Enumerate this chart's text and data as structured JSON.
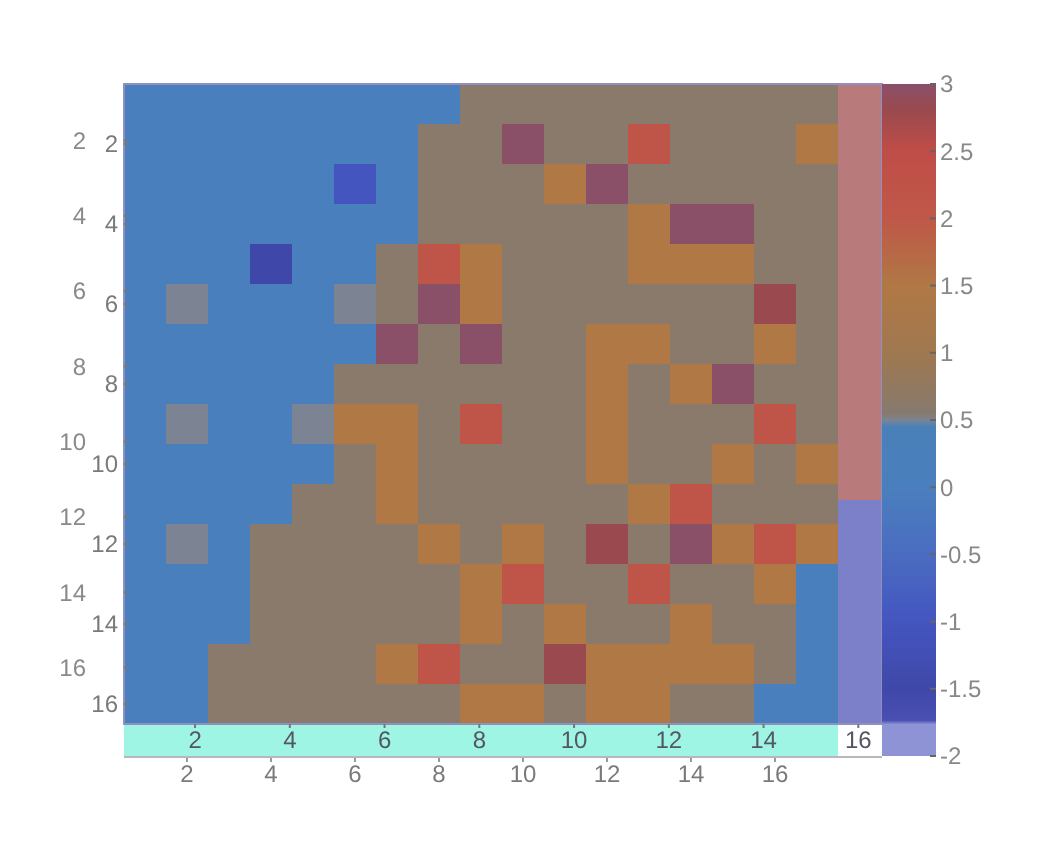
{
  "chart_data": {
    "type": "heatmap",
    "categories": [
      null,
      "2",
      null,
      "4",
      null,
      "6",
      null,
      "8",
      null,
      "10",
      null,
      "12",
      null,
      "14",
      null,
      "16",
      null
    ],
    "y_categories": [
      null,
      "2",
      null,
      "4",
      null,
      "6",
      null,
      "8",
      null,
      "10",
      null,
      "12",
      null,
      "14",
      null,
      "16"
    ],
    "cells": [
      [
        0,
        0,
        0,
        0,
        0,
        0,
        0,
        0,
        0.6,
        0.6,
        0.6,
        0.6,
        0.6,
        0.6,
        0.6,
        0.6,
        0.6
      ],
      [
        0,
        0,
        0,
        0,
        0,
        0,
        0,
        0.6,
        0.6,
        3,
        0.6,
        0.6,
        2.2,
        0.6,
        0.6,
        0.6,
        1.5
      ],
      [
        0,
        0,
        0,
        0,
        0,
        -1,
        0,
        0.6,
        0.6,
        0.6,
        1.5,
        3,
        0.6,
        0.6,
        0.6,
        0.6,
        0.6
      ],
      [
        0,
        0,
        0,
        0,
        0,
        0,
        0,
        0.6,
        0.6,
        0.6,
        0.6,
        0.6,
        1.5,
        3,
        3,
        0.6,
        0.6
      ],
      [
        0,
        0,
        0,
        -1.5,
        0,
        0,
        0.6,
        2.2,
        1.5,
        0.6,
        0.6,
        0.6,
        1.5,
        1.5,
        1.5,
        0.6,
        0.6
      ],
      [
        0,
        0.5,
        0,
        0,
        0,
        0.5,
        0.6,
        3,
        1.5,
        0.6,
        0.6,
        0.6,
        0.6,
        0.6,
        0.6,
        2.8,
        0.6
      ],
      [
        0,
        0,
        0,
        0,
        0,
        0,
        3,
        0.6,
        3,
        0.6,
        0.6,
        1.5,
        1.5,
        0.6,
        0.6,
        1.5,
        0.6
      ],
      [
        0,
        0,
        0,
        0,
        0,
        0.6,
        0.6,
        0.6,
        0.6,
        0.6,
        0.6,
        1.5,
        0.6,
        1.5,
        3,
        0.6,
        0.6
      ],
      [
        0,
        0.5,
        0,
        0,
        0.5,
        1.5,
        1.5,
        0.6,
        2.2,
        0.6,
        0.6,
        1.5,
        0.6,
        0.6,
        0.6,
        2.2,
        0.6
      ],
      [
        0,
        0,
        0,
        0,
        0,
        0.6,
        1.5,
        0.6,
        0.6,
        0.6,
        0.6,
        1.5,
        0.6,
        0.6,
        1.5,
        0.6,
        1.5
      ],
      [
        0,
        0,
        0,
        0,
        0.6,
        0.6,
        1.5,
        0.6,
        0.6,
        0.6,
        0.6,
        0.6,
        1.5,
        2.2,
        0.6,
        0.6,
        0.6
      ],
      [
        0,
        0.5,
        0,
        0.6,
        0.6,
        0.6,
        0.6,
        1.5,
        0.6,
        1.5,
        0.6,
        2.8,
        0.6,
        3,
        1.5,
        2.2,
        1.5
      ],
      [
        0,
        0,
        0,
        0.6,
        0.6,
        0.6,
        0.6,
        0.6,
        1.5,
        2.2,
        0.6,
        0.6,
        2.2,
        0.6,
        0.6,
        1.5,
        0
      ],
      [
        0,
        0,
        0,
        0.6,
        0.6,
        0.6,
        0.6,
        0.6,
        1.5,
        0.6,
        1.5,
        0.6,
        0.6,
        1.5,
        0.6,
        0.6,
        0
      ],
      [
        0,
        0,
        0.6,
        0.6,
        0.6,
        0.6,
        1.5,
        2.2,
        0.6,
        0.6,
        2.8,
        1.5,
        1.5,
        1.5,
        1.5,
        0.6,
        0
      ],
      [
        0,
        0,
        0.6,
        0.6,
        0.6,
        0.6,
        0.6,
        0.6,
        1.5,
        1.5,
        0.6,
        1.5,
        1.5,
        0.6,
        0.6,
        0,
        0
      ]
    ],
    "clim": [
      -2,
      3
    ],
    "cticks": [
      -2,
      -1.5,
      -1,
      -0.5,
      0,
      0.5,
      1,
      1.5,
      2,
      2.5,
      3
    ],
    "x2lim": [
      0.5,
      16.5
    ],
    "x2ticks": [
      2,
      4,
      6,
      8,
      10,
      12,
      14,
      16
    ],
    "y2lim": [
      17.5,
      0.5
    ],
    "y2ticks": [
      2,
      4,
      6,
      8,
      10,
      12,
      14,
      16
    ]
  }
}
